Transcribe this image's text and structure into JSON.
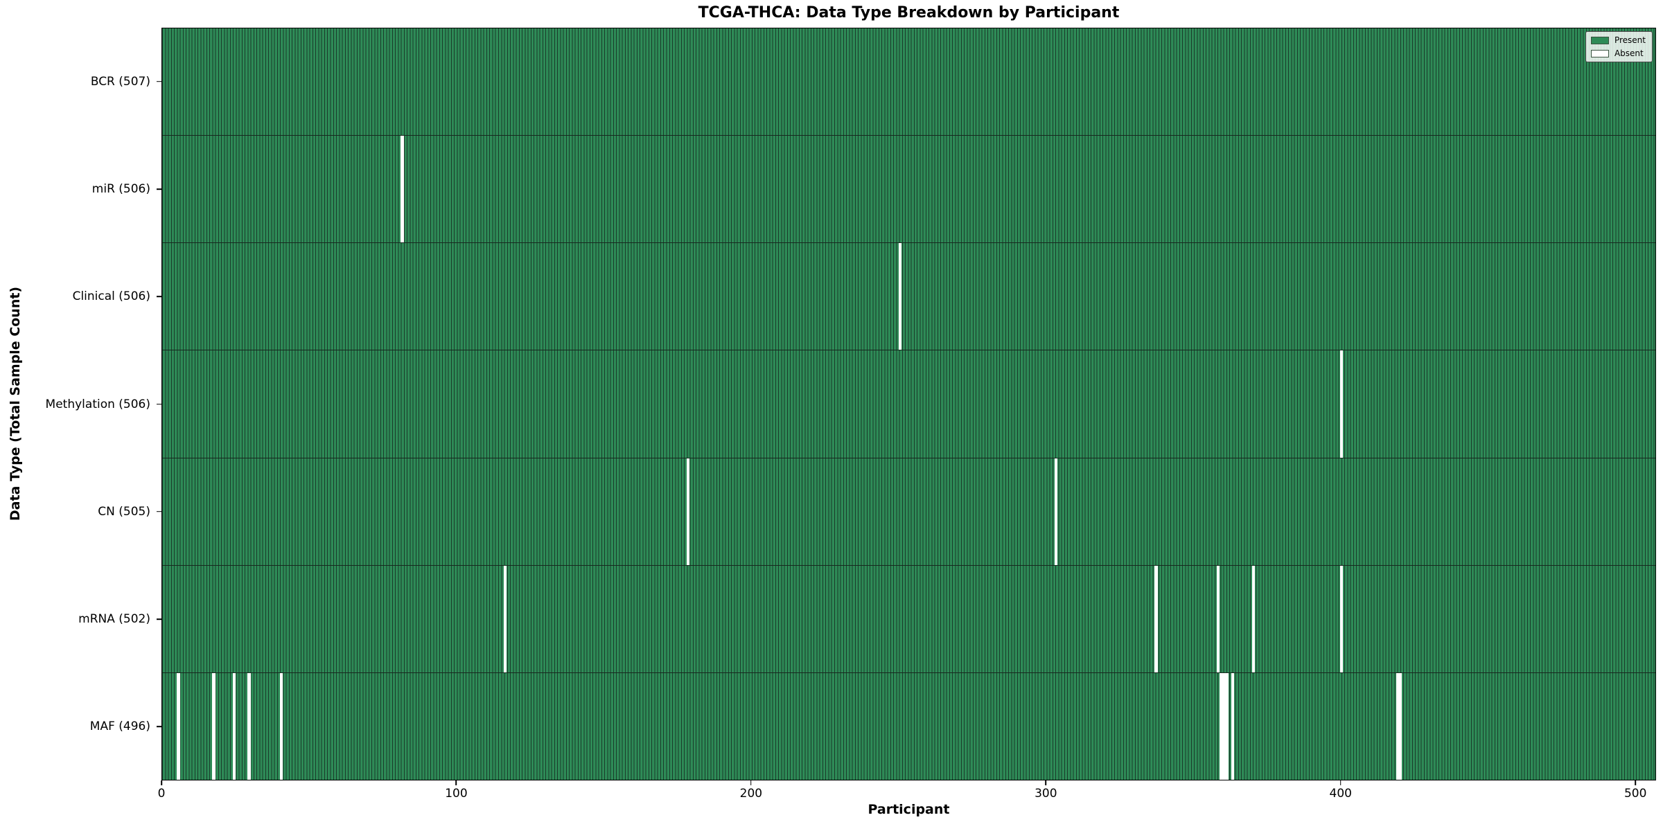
{
  "title": "TCGA-THCA: Data Type Breakdown by Participant",
  "xlabel": "Participant",
  "ylabel": "Data Type (Total Sample Count)",
  "legend": {
    "present": "Present",
    "absent": "Absent"
  },
  "colors": {
    "present": "#2e8b57",
    "absent": "#ffffff",
    "bar_edge": "#1a3a2a",
    "frame": "#000000"
  },
  "chart_data": {
    "type": "heatmap",
    "title": "TCGA-THCA: Data Type Breakdown by Participant",
    "xlabel": "Participant",
    "ylabel": "Data Type (Total Sample Count)",
    "legend_entries": [
      "Present",
      "Absent"
    ],
    "legend_position": "upper right",
    "grid": false,
    "total_participants": 507,
    "xlim": [
      0,
      507
    ],
    "x_ticks": [
      0,
      100,
      200,
      300,
      400,
      500
    ],
    "rows": [
      {
        "label": "BCR (507)",
        "data_type": "BCR",
        "present_count": 507,
        "absent_participants": []
      },
      {
        "label": "miR (506)",
        "data_type": "miR",
        "present_count": 506,
        "absent_participants": [
          81
        ]
      },
      {
        "label": "Clinical (506)",
        "data_type": "Clinical",
        "present_count": 506,
        "absent_participants": [
          250
        ]
      },
      {
        "label": "Methylation (506)",
        "data_type": "Methylation",
        "present_count": 506,
        "absent_participants": [
          400
        ]
      },
      {
        "label": "CN (505)",
        "data_type": "CN",
        "present_count": 505,
        "absent_participants": [
          178,
          303
        ]
      },
      {
        "label": "mRNA (502)",
        "data_type": "mRNA",
        "present_count": 502,
        "absent_participants": [
          116,
          337,
          358,
          370,
          400
        ]
      },
      {
        "label": "MAF (496)",
        "data_type": "MAF",
        "present_count": 496,
        "absent_participants": [
          5,
          17,
          24,
          29,
          40,
          359,
          360,
          361,
          363,
          419,
          420
        ]
      }
    ]
  }
}
